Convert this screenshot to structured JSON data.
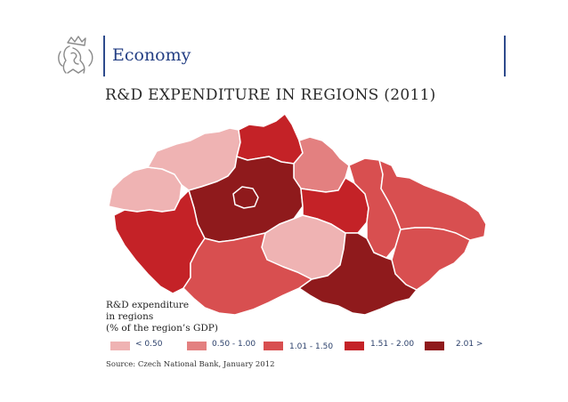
{
  "header": {
    "section_title": "Economy",
    "logo_icon": "czech-lion-emblem-icon"
  },
  "slide": {
    "title": "R&D EXPENDITURE IN REGIONS (2011)"
  },
  "legend": {
    "title_lines": [
      "R&D expenditure",
      "in regions",
      "(% of the region’s GDP)"
    ],
    "items": [
      {
        "label": "< 0.50",
        "color": "#efb3b3"
      },
      {
        "label": "0.50 - 1.00",
        "color": "#e38080"
      },
      {
        "label": "1.01 - 1.50",
        "color": "#d84f50"
      },
      {
        "label": "1.51 - 2.00",
        "color": "#c42227"
      },
      {
        "label": "2.01 >",
        "color": "#8f1a1c"
      }
    ]
  },
  "source": "Source: Czech National Bank, January 2012",
  "colors": {
    "accent_bar": "#2e4b8c",
    "title_blue": "#243f84",
    "region_border": "#ffffff"
  }
}
